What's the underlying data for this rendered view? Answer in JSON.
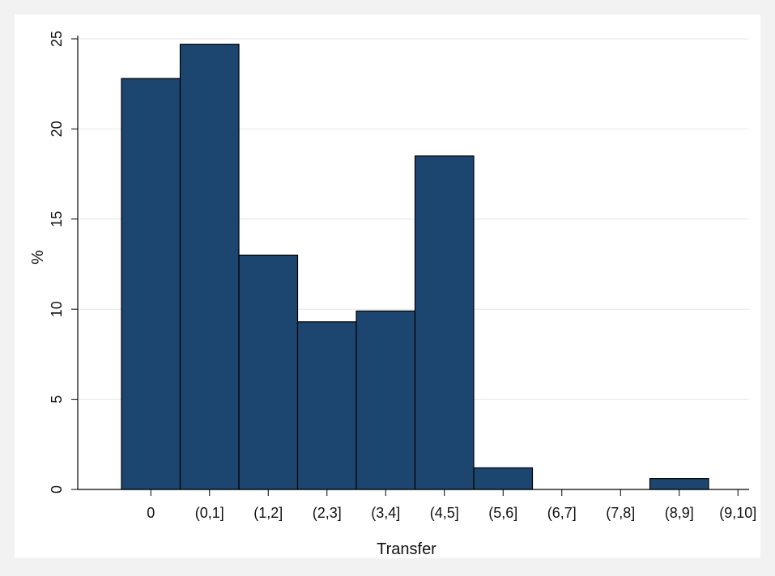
{
  "chart_data": {
    "type": "bar",
    "title": "",
    "xlabel": "Transfer",
    "ylabel": "%",
    "categories": [
      "0",
      "(0,1]",
      "(1,2]",
      "(2,3]",
      "(3,4]",
      "(4,5]",
      "(5,6]",
      "(6,7]",
      "(7,8]",
      "(8,9]",
      "(9,10]"
    ],
    "values": [
      22.8,
      24.7,
      13.0,
      9.3,
      9.9,
      18.5,
      1.2,
      0,
      0,
      0.6,
      null
    ],
    "ylim": [
      0,
      25
    ],
    "yticks": [
      0,
      5,
      10,
      15,
      20,
      25
    ],
    "grid": true,
    "colors": {
      "bar_fill": "#1c4670",
      "bar_stroke": "#000000",
      "plot_bg": "#ffffff",
      "page_bg": "#f2f2f2",
      "grid": "#e6e6e6"
    }
  }
}
